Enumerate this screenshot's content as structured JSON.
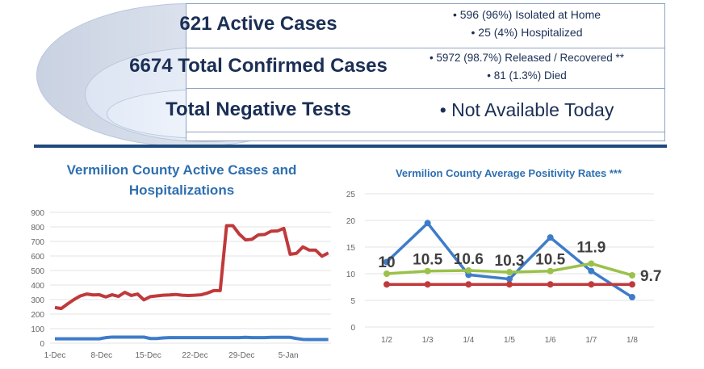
{
  "summary": {
    "rows": [
      {
        "title": "621 Active Cases",
        "details": [
          "• 596 (96%) Isolated at Home",
          "• 25 (4%) Hospitalized"
        ]
      },
      {
        "title": "6674 Total Confirmed Cases",
        "details": [
          "• 5972 (98.7%) Released / Recovered **",
          "• 81 (1.3%) Died"
        ]
      },
      {
        "title": "Total Negative Tests",
        "details": [
          "•  Not Available Today"
        ]
      }
    ]
  },
  "chart_data": [
    {
      "type": "line",
      "title": "Vermilion County Active Cases and Hospitalizations",
      "x_tick_labels": [
        "1-Dec",
        "8-Dec",
        "15-Dec",
        "22-Dec",
        "29-Dec",
        "5-Jan"
      ],
      "x_start": "1-Dec",
      "x_end": "11-Jan",
      "ylim": [
        0,
        900
      ],
      "y_ticks": [
        0,
        100,
        200,
        300,
        400,
        500,
        600,
        700,
        800,
        900
      ],
      "grid": true,
      "series": [
        {
          "color": "#c0393b",
          "values": [
            245,
            238,
            270,
            300,
            325,
            338,
            332,
            333,
            318,
            333,
            322,
            350,
            328,
            338,
            298,
            320,
            325,
            330,
            332,
            335,
            330,
            328,
            330,
            333,
            345,
            362,
            362,
            808,
            808,
            750,
            710,
            715,
            745,
            748,
            770,
            772,
            790,
            612,
            618,
            662,
            640,
            640,
            598,
            621
          ]
        },
        {
          "color": "#3d7cc9",
          "values": [
            30,
            30,
            30,
            30,
            30,
            30,
            30,
            30,
            38,
            42,
            42,
            42,
            42,
            42,
            42,
            32,
            32,
            36,
            38,
            38,
            38,
            38,
            38,
            38,
            38,
            38,
            38,
            38,
            38,
            38,
            40,
            38,
            38,
            38,
            40,
            40,
            40,
            40,
            32,
            26,
            25,
            25,
            25,
            25
          ]
        }
      ]
    },
    {
      "type": "line",
      "title": "Vermilion County Average Positivity Rates ***",
      "categories": [
        "1/2",
        "1/3",
        "1/4",
        "1/5",
        "1/6",
        "1/7",
        "1/8"
      ],
      "ylim": [
        0,
        25
      ],
      "y_ticks": [
        0,
        5,
        10,
        15,
        20,
        25
      ],
      "grid": true,
      "series": [
        {
          "color": "#3d7cc9",
          "values": [
            12.2,
            19.5,
            9.8,
            9.0,
            16.8,
            10.5,
            5.6
          ]
        },
        {
          "color": "#9bc14a",
          "values": [
            10,
            10.5,
            10.6,
            10.3,
            10.5,
            11.9,
            9.7
          ],
          "data_labels": [
            "10",
            "10.5",
            "10.6",
            "10.3",
            "10.5",
            "11.9",
            "9.7"
          ]
        },
        {
          "color": "#c0393b",
          "values": [
            8,
            8,
            8,
            8,
            8,
            8,
            8
          ]
        }
      ]
    }
  ]
}
